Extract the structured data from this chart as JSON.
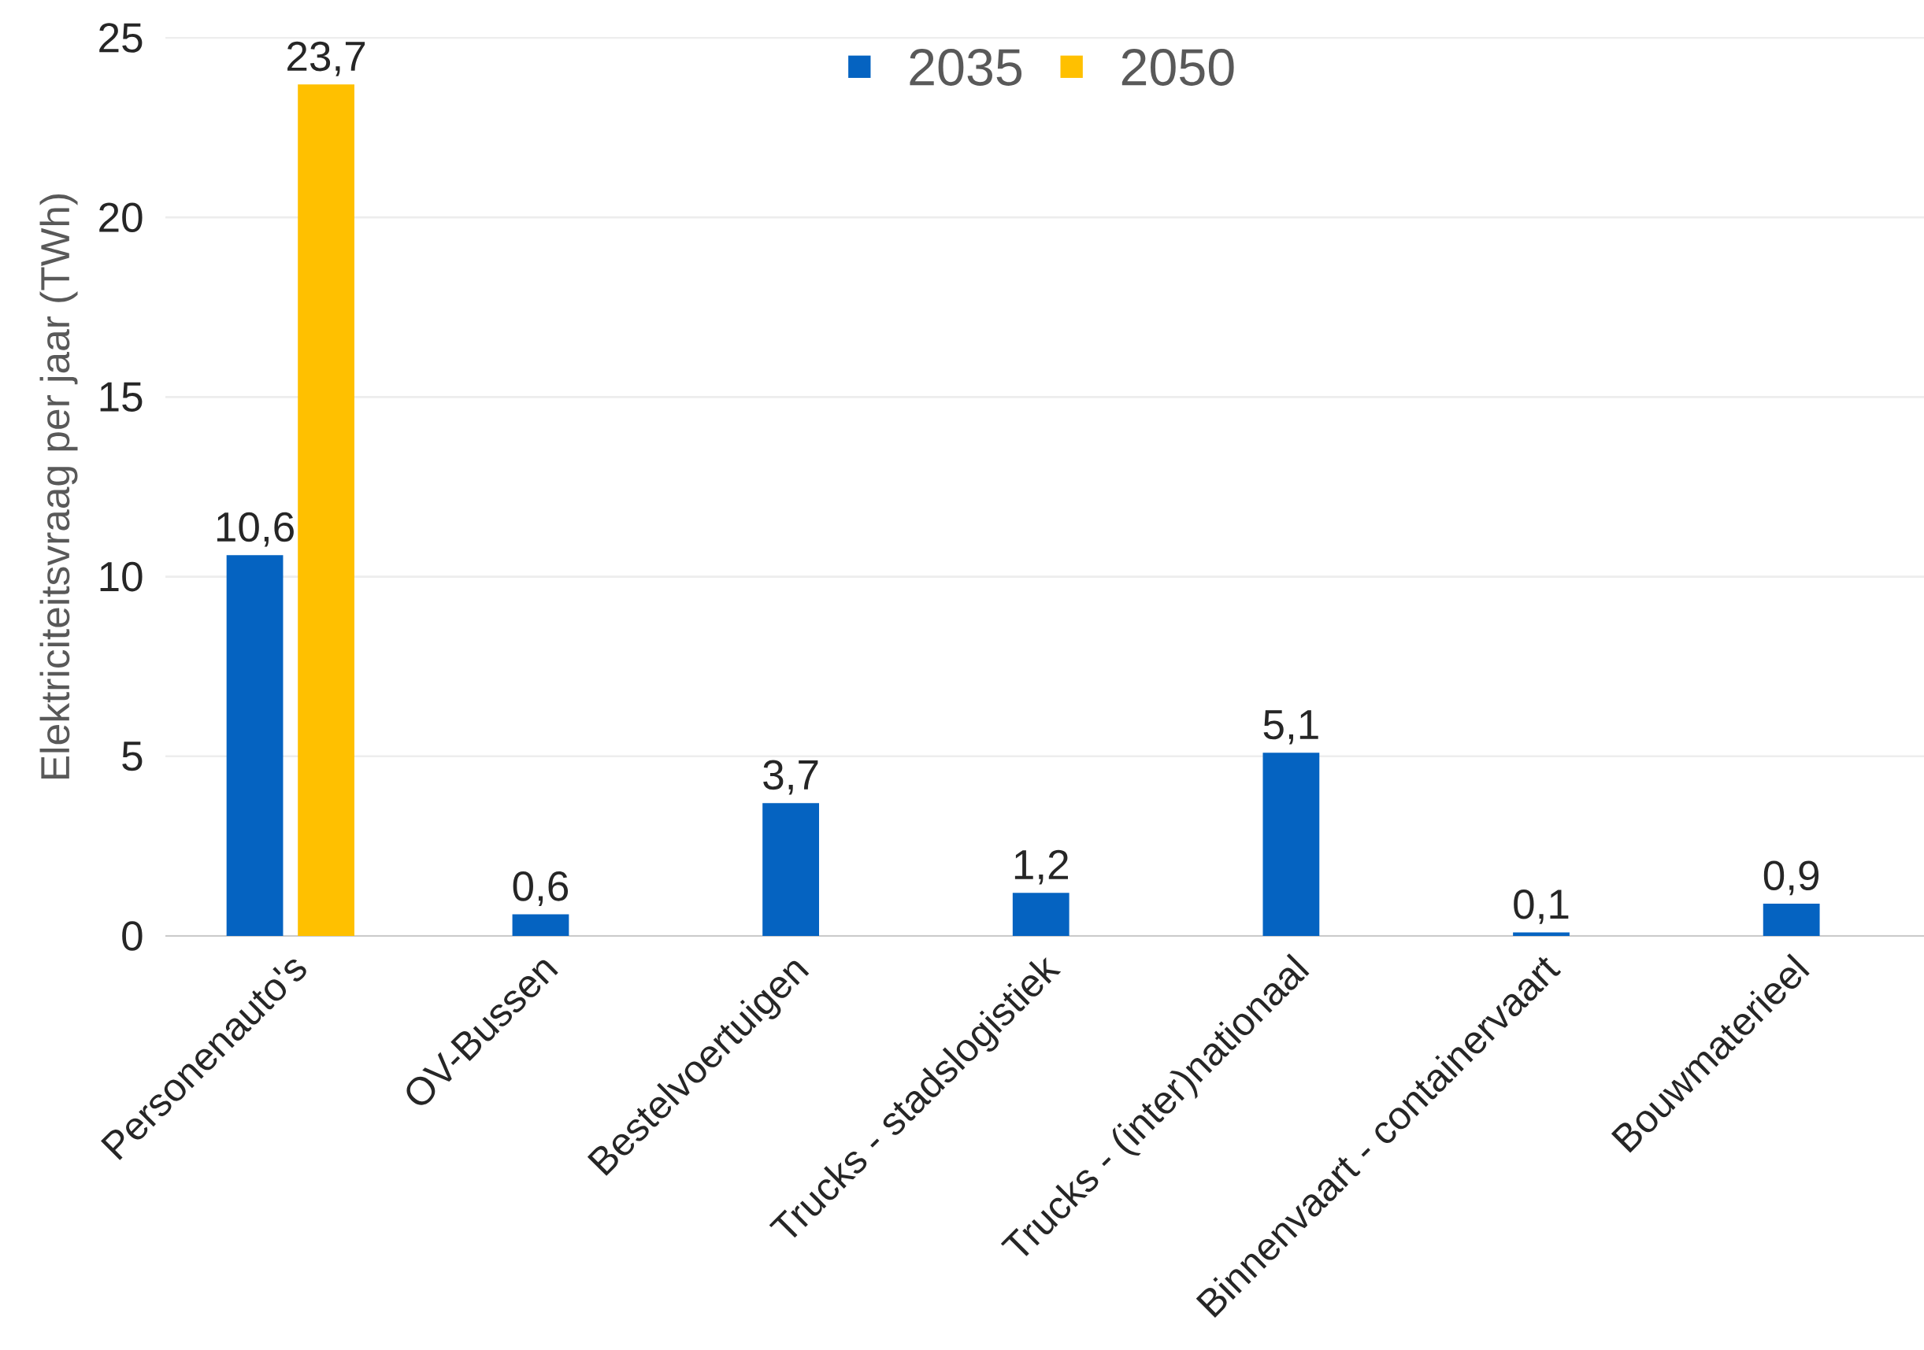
{
  "chart_data": {
    "type": "bar",
    "ylabel": "Elektriciteitsvraag per jaar (TWh)",
    "categories": [
      "Personenauto's",
      "OV-Bussen",
      "Bestelvoertuigen",
      "Trucks - stadslogistiek",
      "Trucks - (inter)nationaal",
      "Binnenvaart - containervaart",
      "Bouwmaterieel"
    ],
    "series": [
      {
        "name": "2035",
        "color": "#0563c1",
        "values": [
          10.6,
          0.6,
          3.7,
          1.2,
          5.1,
          0.1,
          0.9
        ],
        "value_labels": [
          "10,6",
          "0,6",
          "3,7",
          "1,2",
          "5,1",
          "0,1",
          "0,9"
        ]
      },
      {
        "name": "2050",
        "color": "#ffc000",
        "values": [
          23.7,
          null,
          null,
          null,
          null,
          null,
          null
        ],
        "value_labels": [
          "23,7",
          null,
          null,
          null,
          null,
          null,
          null
        ]
      }
    ],
    "ylim": [
      0,
      25
    ],
    "yticks": [
      0,
      5,
      10,
      15,
      20,
      25
    ],
    "grid": "y",
    "legend": "top"
  }
}
